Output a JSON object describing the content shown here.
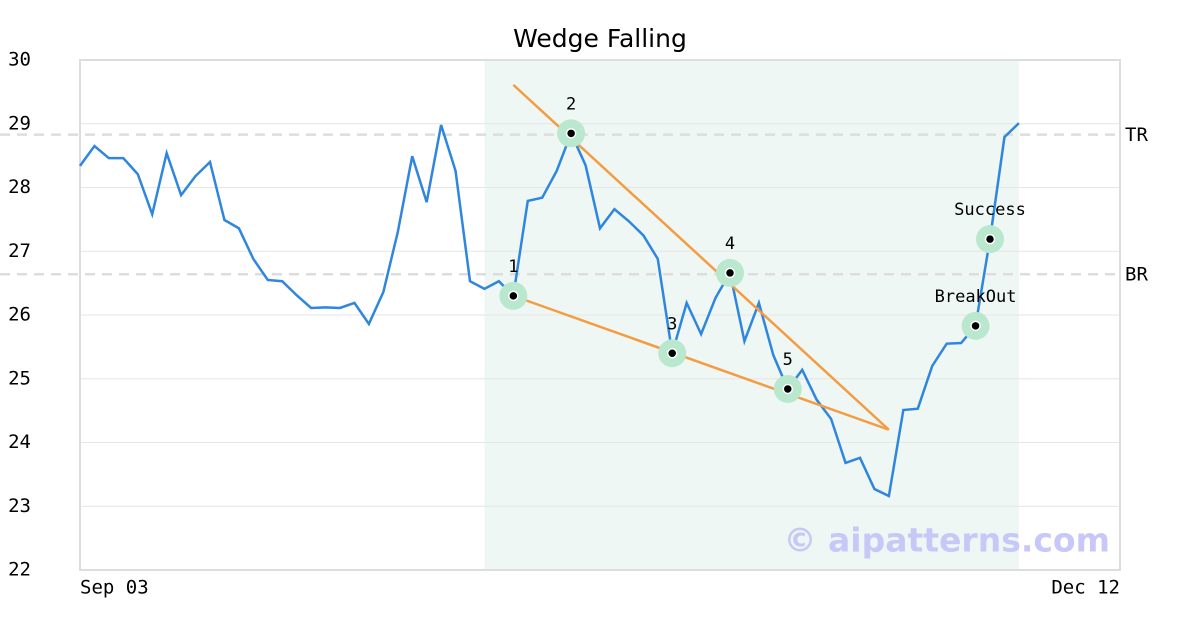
{
  "chart_data": {
    "type": "line",
    "title": "Wedge Falling",
    "x": [
      0,
      1,
      2,
      3,
      4,
      5,
      6,
      7,
      8,
      9,
      10,
      11,
      12,
      13,
      14,
      15,
      16,
      17,
      18,
      19,
      20,
      21,
      22,
      23,
      24,
      25,
      26,
      27,
      28,
      29,
      30,
      31,
      32,
      33,
      34,
      35,
      36,
      37,
      38,
      39,
      40,
      41,
      42,
      43,
      44,
      45,
      46,
      47,
      48,
      49,
      50,
      51,
      52,
      53,
      54,
      55,
      56,
      57,
      58,
      59,
      60,
      61,
      62,
      63,
      64,
      65
    ],
    "values": [
      28.34,
      28.65,
      28.46,
      28.46,
      28.21,
      27.58,
      28.54,
      27.88,
      28.18,
      28.4,
      27.49,
      27.36,
      26.88,
      26.55,
      26.53,
      26.31,
      26.11,
      26.12,
      26.11,
      26.19,
      25.86,
      26.36,
      27.3,
      28.49,
      27.77,
      28.98,
      28.26,
      26.53,
      26.41,
      26.53,
      26.3,
      27.79,
      27.84,
      28.26,
      28.85,
      28.35,
      27.36,
      27.66,
      27.47,
      27.25,
      26.88,
      25.4,
      26.19,
      25.7,
      26.27,
      26.66,
      25.59,
      26.19,
      25.37,
      24.84,
      25.14,
      24.67,
      24.37,
      23.68,
      23.76,
      23.27,
      23.16,
      24.51,
      24.53,
      25.2,
      25.55,
      25.56,
      25.83,
      27.19,
      28.79,
      29.01
    ],
    "color": "#2e86de",
    "xlim": [
      0,
      72
    ],
    "xticks": [
      {
        "value": 0,
        "label": "Sep 03"
      },
      {
        "value": 72,
        "label": "Dec 12"
      }
    ],
    "ylim": [
      22,
      30
    ],
    "yticks": [
      22,
      23,
      24,
      25,
      26,
      27,
      28,
      29,
      30
    ],
    "grid": true,
    "highlight_x": [
      28,
      65
    ],
    "levels": [
      {
        "label": "TR",
        "value": 28.83
      },
      {
        "label": "BR",
        "value": 26.64
      }
    ],
    "lines": [
      {
        "x": [
          30,
          56
        ],
        "y": [
          29.61,
          24.2
        ],
        "color": "#f59b42"
      },
      {
        "x": [
          30,
          56
        ],
        "y": [
          26.3,
          24.2
        ],
        "color": "#f59b42"
      }
    ],
    "points": [
      {
        "label": "1",
        "x": 30,
        "y": 26.3
      },
      {
        "label": "2",
        "x": 34,
        "y": 28.85
      },
      {
        "label": "3",
        "x": 41,
        "y": 25.4
      },
      {
        "label": "4",
        "x": 45,
        "y": 26.66
      },
      {
        "label": "5",
        "x": 49,
        "y": 24.84
      },
      {
        "label": "BreakOut",
        "x": 62,
        "y": 25.83
      },
      {
        "label": "Success",
        "x": 63,
        "y": 27.19
      }
    ],
    "watermark": "© aipatterns.com"
  }
}
